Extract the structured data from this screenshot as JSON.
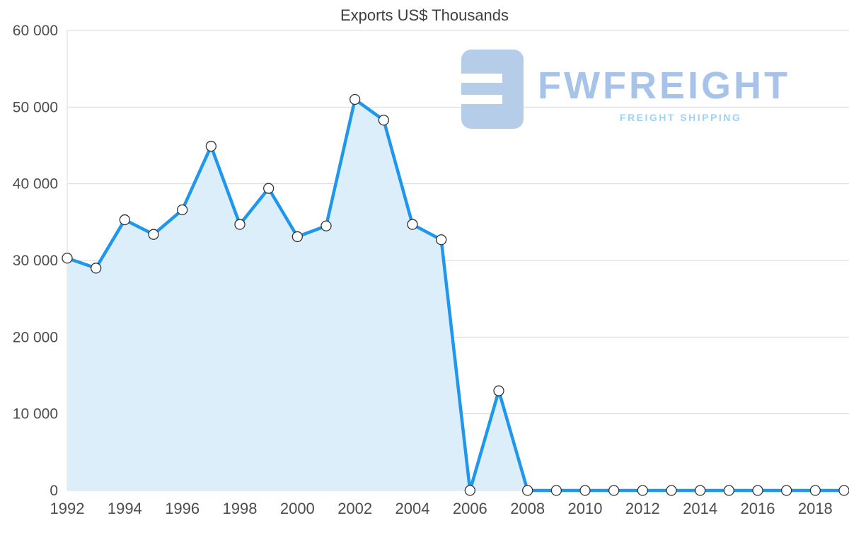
{
  "title": "Exports US$ Thousands",
  "watermark": {
    "brand": "FWFREIGHT",
    "tagline": "FREIGHT SHIPPING",
    "brand_color": "#a7c3ea",
    "tagline_color": "#9ed2f2",
    "logo_color": "#b6cde9"
  },
  "chart_data": {
    "type": "area",
    "title": "Exports US$ Thousands",
    "xlabel": "",
    "ylabel": "",
    "x": [
      1992,
      1993,
      1994,
      1995,
      1996,
      1997,
      1998,
      1999,
      2000,
      2001,
      2002,
      2003,
      2004,
      2005,
      2006,
      2007,
      2008,
      2009,
      2010,
      2011,
      2012,
      2013,
      2014,
      2015,
      2016,
      2017,
      2018,
      2019
    ],
    "series": [
      {
        "name": "Exports US$ Thousands",
        "values": [
          30300,
          29000,
          35300,
          33400,
          36600,
          44900,
          34700,
          39400,
          33100,
          34500,
          51000,
          48300,
          34700,
          32700,
          0,
          13000,
          0,
          0,
          0,
          0,
          0,
          0,
          0,
          0,
          0,
          0,
          0,
          0
        ]
      }
    ],
    "ylim": [
      0,
      60000
    ],
    "y_ticks": [
      0,
      10000,
      20000,
      30000,
      40000,
      50000,
      60000
    ],
    "y_tick_labels": [
      "0",
      "10 000",
      "20 000",
      "30 000",
      "40 000",
      "50 000",
      "60 000"
    ],
    "x_tick_labels": [
      "1992",
      "1994",
      "1996",
      "1998",
      "2000",
      "2002",
      "2004",
      "2006",
      "2008",
      "2010",
      "2012",
      "2014",
      "2016",
      "2018"
    ],
    "grid": true,
    "legend": "none",
    "line_color": "#1e97ec",
    "fill_color": "#ddeefb",
    "grid_color": "#d8d8d8",
    "tick_color": "#4d4d4d",
    "marker_fill": "#ffffff",
    "marker_stroke": "#333333"
  }
}
